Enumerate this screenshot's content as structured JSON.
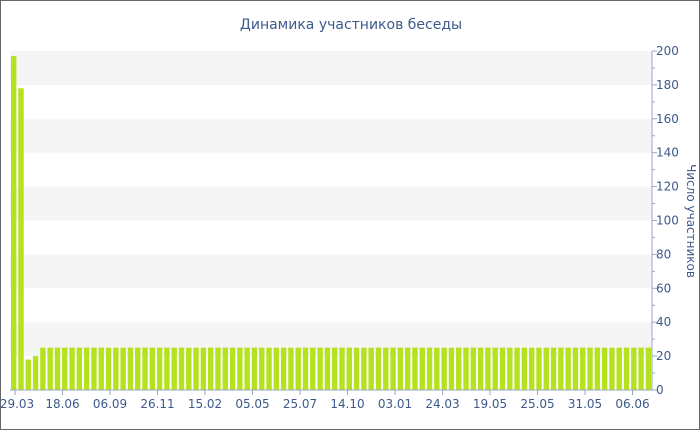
{
  "chart_data": {
    "type": "bar",
    "title": "Динамика участников беседы",
    "xlabel": "",
    "ylabel": "Число участников",
    "ylim": [
      0,
      200
    ],
    "yticks": [
      0,
      20,
      40,
      60,
      80,
      100,
      120,
      140,
      160,
      180,
      200
    ],
    "grid": "alternating horizontal bands",
    "y_axis_position": "right",
    "bar_color": "#b5e21e",
    "band_color": "#f5f5f5",
    "text_color": "#3d5a8c",
    "xtick_labels": [
      "29.03",
      "18.06",
      "06.09",
      "26.11",
      "15.02",
      "05.05",
      "25.07",
      "14.10",
      "03.01",
      "24.03",
      "19.05",
      "25.05",
      "31.05",
      "06.06"
    ],
    "values": [
      197,
      178,
      18,
      20,
      25,
      25,
      25,
      25,
      25,
      25,
      25,
      25,
      25,
      25,
      25,
      25,
      25,
      25,
      25,
      25,
      25,
      25,
      25,
      25,
      25,
      25,
      25,
      25,
      25,
      25,
      25,
      25,
      25,
      25,
      25,
      25,
      25,
      25,
      25,
      25,
      25,
      25,
      25,
      25,
      25,
      25,
      25,
      25,
      25,
      25,
      25,
      25,
      25,
      25,
      25,
      25,
      25,
      25,
      25,
      25,
      25,
      25,
      25,
      25,
      25,
      25,
      25,
      25,
      25,
      25,
      25,
      25,
      25,
      25,
      25,
      25,
      25,
      25,
      25,
      25,
      25,
      25,
      25,
      25,
      25,
      25,
      25,
      25
    ]
  }
}
